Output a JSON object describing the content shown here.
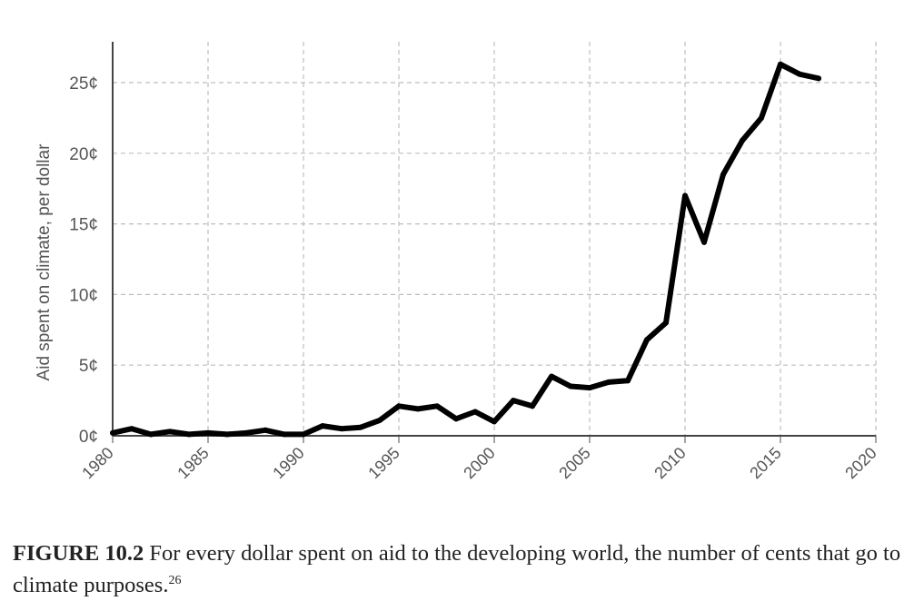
{
  "chart_data": {
    "type": "line",
    "title": "",
    "xlabel": "",
    "ylabel": "Aid spent on climate, per dollar",
    "xlim": [
      1980,
      2020
    ],
    "ylim": [
      0,
      28
    ],
    "x_ticks": [
      "1980",
      "1985",
      "1990",
      "1995",
      "2000",
      "2005",
      "2010",
      "2015",
      "2020"
    ],
    "y_ticks": [
      "0¢",
      "5¢",
      "10¢",
      "15¢",
      "20¢",
      "25¢"
    ],
    "y_tick_values": [
      0,
      5,
      10,
      15,
      20,
      25
    ],
    "grid": true,
    "series": [
      {
        "name": "Aid spent on climate, per dollar",
        "color": "#000000",
        "x": [
          1980,
          1981,
          1982,
          1983,
          1984,
          1985,
          1986,
          1987,
          1988,
          1989,
          1990,
          1991,
          1992,
          1993,
          1994,
          1995,
          1996,
          1997,
          1998,
          1999,
          2000,
          2001,
          2002,
          2003,
          2004,
          2005,
          2006,
          2007,
          2008,
          2009,
          2010,
          2011,
          2012,
          2013,
          2014,
          2015,
          2016,
          2017
        ],
        "values": [
          0.2,
          0.5,
          0.1,
          0.3,
          0.1,
          0.2,
          0.1,
          0.2,
          0.4,
          0.1,
          0.1,
          0.7,
          0.5,
          0.6,
          1.1,
          2.1,
          1.9,
          2.1,
          1.2,
          1.7,
          1.0,
          2.5,
          2.1,
          4.2,
          3.5,
          3.4,
          3.8,
          3.9,
          6.8,
          8.0,
          17.0,
          13.7,
          18.5,
          20.9,
          22.5,
          26.3,
          25.6,
          25.3
        ]
      }
    ]
  },
  "caption": {
    "label": "FIGURE 10.2",
    "text": "For every dollar spent on aid to the developing world, the number of cents that go to climate purposes.",
    "footnote": "26"
  }
}
